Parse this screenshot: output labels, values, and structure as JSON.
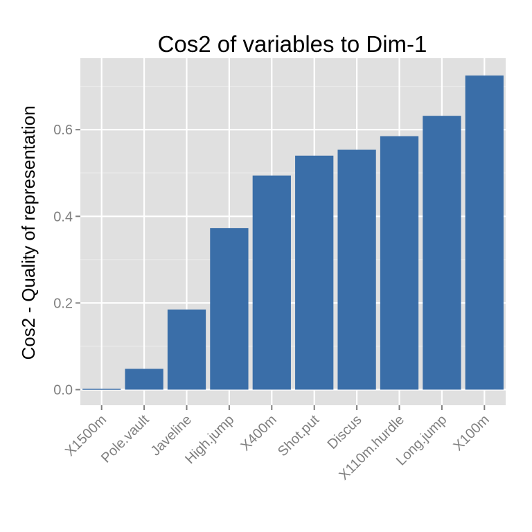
{
  "chart_data": {
    "type": "bar",
    "title": "Cos2 of variables to Dim-1",
    "xlabel": "",
    "ylabel": "Cos2 - Quality of representation",
    "categories": [
      "X1500m",
      "Pole.vault",
      "Javeline",
      "High.jump",
      "X400m",
      "Shot.put",
      "Discus",
      "X110m.hurdle",
      "Long.jump",
      "X100m"
    ],
    "values": [
      0.002,
      0.048,
      0.185,
      0.373,
      0.494,
      0.54,
      0.554,
      0.585,
      0.632,
      0.725
    ],
    "ylim": [
      -0.036,
      0.765
    ],
    "yticks": [
      0.0,
      0.2,
      0.4,
      0.6
    ],
    "ytick_labels": [
      "0.0",
      "0.2",
      "0.4",
      "0.6"
    ],
    "grid": true,
    "legend": "none",
    "colors": {
      "bar": "#3A6EA8",
      "panel": "#E0E0E0",
      "grid_major": "#FFFFFF",
      "grid_minor": "#EDEDED",
      "tick_text": "#7F7F7F",
      "tick_mark": "#7F7F7F"
    }
  }
}
